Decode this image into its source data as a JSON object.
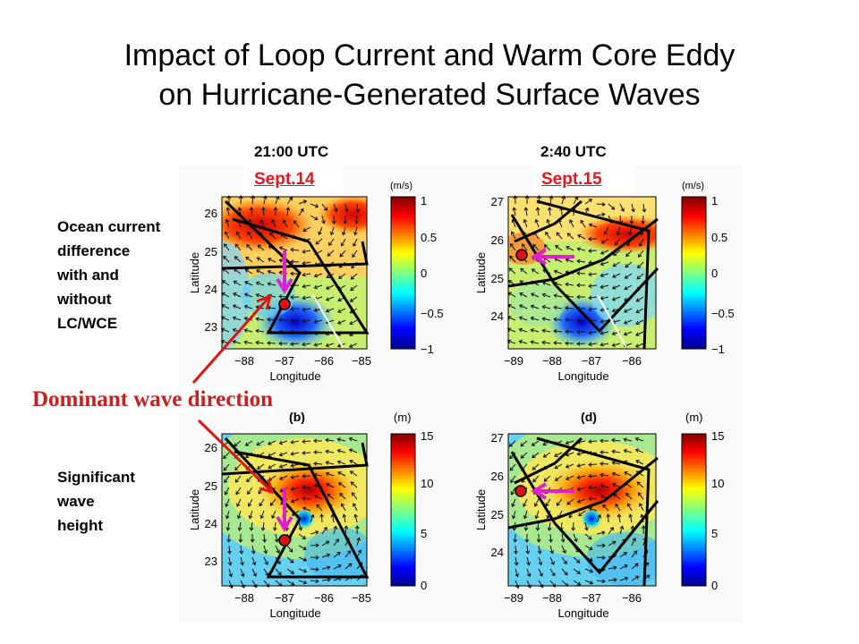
{
  "title_line1": "Impact of Loop Current and Warm Core Eddy",
  "title_line2": "on Hurricane-Generated Surface Waves",
  "left_column": {
    "time": "21:00 UTC",
    "date": "Sept.14"
  },
  "right_column": {
    "time": "2:40 UTC",
    "date": "Sept.15"
  },
  "row_top_label": [
    "Ocean current",
    "difference",
    "with and",
    "without",
    "LC/WCE"
  ],
  "row_bottom_label": [
    "Significant",
    "wave",
    "height"
  ],
  "annotation": "Dominant wave direction",
  "colors": {
    "accent_red": "#e4161e",
    "arrow_magenta": "#e020d0",
    "annotation_red": "#d21c1c"
  },
  "panels": [
    {
      "id": "a",
      "panel_letter": "",
      "xlabel": "Longitude",
      "ylabel": "Latitude",
      "xticks": [
        "−88",
        "−87",
        "−86",
        "−85"
      ],
      "yticks": [
        "26",
        "25",
        "24",
        "23"
      ],
      "colorbar_unit": "(m/s)",
      "colorbar_ticks": [
        "1",
        "0.5",
        "0",
        "−0.5",
        "−1"
      ]
    },
    {
      "id": "c",
      "panel_letter": "",
      "xlabel": "Longitude",
      "ylabel": "Latitude",
      "xticks": [
        "−89",
        "−88",
        "−87",
        "−86"
      ],
      "yticks": [
        "27",
        "26",
        "25",
        "24"
      ],
      "colorbar_unit": "(m/s)",
      "colorbar_ticks": [
        "1",
        "0.5",
        "0",
        "−0.5",
        "−1"
      ]
    },
    {
      "id": "b",
      "panel_letter": "(b)",
      "xlabel": "Longitude",
      "ylabel": "Latitude",
      "xticks": [
        "−88",
        "−87",
        "−86",
        "−85"
      ],
      "yticks": [
        "26",
        "25",
        "24",
        "23"
      ],
      "colorbar_unit": "(m)",
      "colorbar_ticks": [
        "15",
        "10",
        "5",
        "0"
      ]
    },
    {
      "id": "d",
      "panel_letter": "(d)",
      "xlabel": "Longitude",
      "ylabel": "Latitude",
      "xticks": [
        "−89",
        "−88",
        "−87",
        "−86"
      ],
      "yticks": [
        "27",
        "26",
        "25",
        "24"
      ],
      "colorbar_unit": "(m)",
      "colorbar_ticks": [
        "15",
        "10",
        "5",
        "0"
      ]
    }
  ]
}
